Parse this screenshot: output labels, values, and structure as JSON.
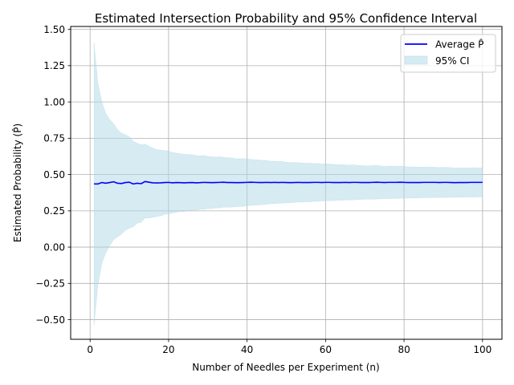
{
  "chart_data": {
    "type": "line",
    "title": "Estimated Intersection Probability and 95% Confidence Interval",
    "xlabel": "Number of Needles per Experiment (n)",
    "ylabel": "Estimated Probability (P̂)",
    "xlim": [
      -4.95,
      104.95
    ],
    "ylim": [
      -0.635,
      1.52
    ],
    "xticks": [
      0,
      20,
      40,
      60,
      80,
      100
    ],
    "xtick_labels": [
      "0",
      "20",
      "40",
      "60",
      "80",
      "100"
    ],
    "yticks": [
      -0.5,
      -0.25,
      0.0,
      0.25,
      0.5,
      0.75,
      1.0,
      1.25,
      1.5
    ],
    "ytick_labels": [
      "−0.50",
      "−0.25",
      "0.00",
      "0.25",
      "0.50",
      "0.75",
      "1.00",
      "1.25",
      "1.50"
    ],
    "grid": true,
    "legend_position": "top-right",
    "colors": {
      "line": "#0000ff",
      "band": "#add8e6",
      "band_alpha": 0.5
    },
    "series": [
      {
        "name": "Average P̂",
        "kind": "line",
        "x": [
          1,
          2,
          3,
          4,
          5,
          6,
          7,
          8,
          9,
          10,
          11,
          12,
          13,
          14,
          15,
          16,
          17,
          18,
          19,
          20,
          21,
          22,
          23,
          24,
          25,
          26,
          27,
          28,
          29,
          30,
          31,
          32,
          33,
          34,
          35,
          36,
          37,
          38,
          39,
          40,
          41,
          42,
          43,
          44,
          45,
          46,
          47,
          48,
          49,
          50,
          51,
          52,
          53,
          54,
          55,
          56,
          57,
          58,
          59,
          60,
          61,
          62,
          63,
          64,
          65,
          66,
          67,
          68,
          69,
          70,
          71,
          72,
          73,
          74,
          75,
          76,
          77,
          78,
          79,
          80,
          81,
          82,
          83,
          84,
          85,
          86,
          87,
          88,
          89,
          90,
          91,
          92,
          93,
          94,
          95,
          96,
          97,
          98,
          99,
          100
        ],
        "y": [
          0.435,
          0.435,
          0.445,
          0.44,
          0.445,
          0.45,
          0.44,
          0.438,
          0.445,
          0.447,
          0.435,
          0.44,
          0.437,
          0.452,
          0.447,
          0.443,
          0.442,
          0.443,
          0.445,
          0.446,
          0.443,
          0.445,
          0.444,
          0.443,
          0.444,
          0.445,
          0.443,
          0.444,
          0.446,
          0.445,
          0.444,
          0.445,
          0.446,
          0.447,
          0.445,
          0.445,
          0.444,
          0.444,
          0.445,
          0.446,
          0.447,
          0.446,
          0.445,
          0.445,
          0.446,
          0.445,
          0.446,
          0.445,
          0.446,
          0.445,
          0.444,
          0.445,
          0.446,
          0.445,
          0.445,
          0.445,
          0.446,
          0.446,
          0.445,
          0.446,
          0.446,
          0.445,
          0.445,
          0.445,
          0.446,
          0.445,
          0.446,
          0.446,
          0.445,
          0.445,
          0.445,
          0.446,
          0.447,
          0.446,
          0.445,
          0.446,
          0.446,
          0.446,
          0.447,
          0.446,
          0.445,
          0.445,
          0.445,
          0.445,
          0.446,
          0.446,
          0.446,
          0.446,
          0.445,
          0.446,
          0.446,
          0.445,
          0.444,
          0.445,
          0.445,
          0.445,
          0.446,
          0.446,
          0.446,
          0.446
        ]
      },
      {
        "name": "95% CI",
        "kind": "band",
        "x": [
          1,
          2,
          3,
          4,
          5,
          6,
          7,
          8,
          9,
          10,
          11,
          12,
          13,
          14,
          15,
          16,
          17,
          18,
          19,
          20,
          21,
          22,
          23,
          24,
          25,
          26,
          27,
          28,
          29,
          30,
          31,
          32,
          33,
          34,
          35,
          36,
          37,
          38,
          39,
          40,
          41,
          42,
          43,
          44,
          45,
          46,
          47,
          48,
          49,
          50,
          51,
          52,
          53,
          54,
          55,
          56,
          57,
          58,
          59,
          60,
          61,
          62,
          63,
          64,
          65,
          66,
          67,
          68,
          69,
          70,
          71,
          72,
          73,
          74,
          75,
          76,
          77,
          78,
          79,
          80,
          81,
          82,
          83,
          84,
          85,
          86,
          87,
          88,
          89,
          90,
          91,
          92,
          93,
          94,
          95,
          96,
          97,
          98,
          99,
          100
        ],
        "lower": [
          -0.54,
          -0.26,
          -0.11,
          -0.04,
          0.01,
          0.05,
          0.07,
          0.09,
          0.115,
          0.13,
          0.14,
          0.165,
          0.17,
          0.2,
          0.2,
          0.205,
          0.21,
          0.215,
          0.225,
          0.23,
          0.235,
          0.24,
          0.245,
          0.245,
          0.25,
          0.255,
          0.255,
          0.26,
          0.26,
          0.265,
          0.265,
          0.27,
          0.27,
          0.275,
          0.275,
          0.275,
          0.278,
          0.28,
          0.28,
          0.285,
          0.288,
          0.29,
          0.29,
          0.292,
          0.295,
          0.298,
          0.3,
          0.302,
          0.302,
          0.305,
          0.305,
          0.308,
          0.31,
          0.31,
          0.312,
          0.312,
          0.315,
          0.315,
          0.318,
          0.318,
          0.32,
          0.32,
          0.322,
          0.322,
          0.325,
          0.325,
          0.325,
          0.328,
          0.328,
          0.33,
          0.33,
          0.33,
          0.332,
          0.332,
          0.334,
          0.334,
          0.335,
          0.335,
          0.336,
          0.337,
          0.337,
          0.338,
          0.338,
          0.339,
          0.34,
          0.34,
          0.341,
          0.341,
          0.342,
          0.342,
          0.342,
          0.343,
          0.343,
          0.344,
          0.344,
          0.345,
          0.345,
          0.345,
          0.346,
          0.347
        ],
        "upper": [
          1.41,
          1.13,
          1.0,
          0.92,
          0.88,
          0.85,
          0.81,
          0.785,
          0.775,
          0.76,
          0.73,
          0.715,
          0.705,
          0.71,
          0.695,
          0.682,
          0.672,
          0.668,
          0.665,
          0.662,
          0.652,
          0.648,
          0.643,
          0.641,
          0.638,
          0.635,
          0.631,
          0.628,
          0.632,
          0.625,
          0.623,
          0.62,
          0.622,
          0.619,
          0.615,
          0.615,
          0.61,
          0.608,
          0.61,
          0.607,
          0.605,
          0.602,
          0.6,
          0.598,
          0.597,
          0.592,
          0.592,
          0.59,
          0.59,
          0.585,
          0.583,
          0.582,
          0.582,
          0.58,
          0.578,
          0.578,
          0.577,
          0.577,
          0.572,
          0.574,
          0.572,
          0.57,
          0.568,
          0.568,
          0.567,
          0.565,
          0.567,
          0.564,
          0.562,
          0.56,
          0.56,
          0.562,
          0.562,
          0.56,
          0.556,
          0.558,
          0.558,
          0.557,
          0.558,
          0.555,
          0.553,
          0.552,
          0.552,
          0.551,
          0.552,
          0.552,
          0.551,
          0.551,
          0.548,
          0.55,
          0.55,
          0.547,
          0.545,
          0.546,
          0.546,
          0.545,
          0.547,
          0.547,
          0.546,
          0.545
        ]
      }
    ]
  }
}
